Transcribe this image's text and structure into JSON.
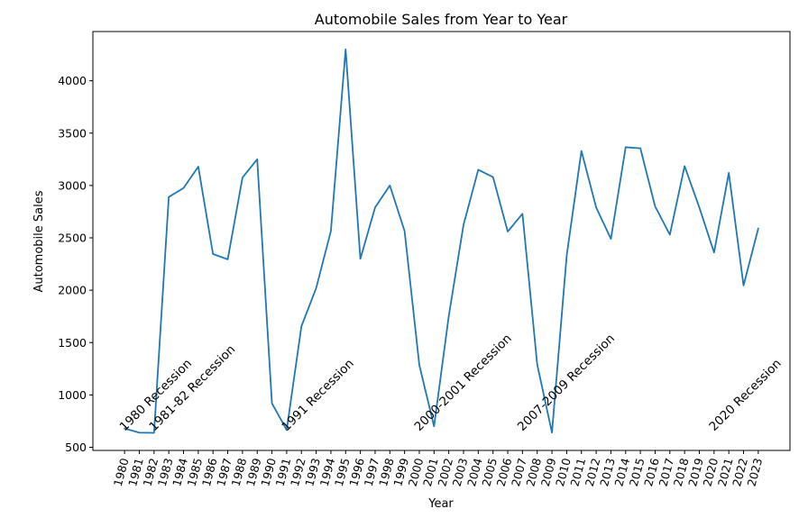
{
  "chart_data": {
    "type": "line",
    "title": "Automobile Sales from Year to Year",
    "xlabel": "Year",
    "ylabel": "Automobile Sales",
    "x": [
      1980,
      1981,
      1982,
      1983,
      1984,
      1985,
      1986,
      1987,
      1988,
      1989,
      1990,
      1991,
      1992,
      1993,
      1994,
      1995,
      1996,
      1997,
      1998,
      1999,
      2000,
      2001,
      2002,
      2003,
      2004,
      2005,
      2006,
      2007,
      2008,
      2009,
      2010,
      2011,
      2012,
      2013,
      2014,
      2015,
      2016,
      2017,
      2018,
      2019,
      2020,
      2021,
      2022,
      2023
    ],
    "series": [
      {
        "values": [
          680,
          640,
          638,
          2890,
          2975,
          3180,
          2345,
          2295,
          3075,
          3250,
          920,
          665,
          1655,
          2020,
          2565,
          4300,
          2300,
          2790,
          3000,
          2565,
          1285,
          700,
          1755,
          2625,
          3150,
          3080,
          2560,
          2730,
          1290,
          640,
          2330,
          3330,
          2790,
          2490,
          3365,
          3355,
          2800,
          2530,
          3185,
          2790,
          2360,
          3120,
          2045,
          2590
        ]
      }
    ],
    "color": "#1f77b4",
    "xlim": [
      1977.85,
      2025.15
    ],
    "ylim": [
      470,
      4470
    ],
    "yticks": [
      500,
      1000,
      1500,
      2000,
      2500,
      3000,
      3500,
      4000
    ],
    "grid": false,
    "annotations": [
      {
        "text": "1980 Recession",
        "x": 1980,
        "y": 650
      },
      {
        "text": "1981-82 Recession",
        "x": 1982,
        "y": 650
      },
      {
        "text": "1991 Recession",
        "x": 1991,
        "y": 650
      },
      {
        "text": "2000-2001 Recession",
        "x": 2000,
        "y": 650
      },
      {
        "text": "2007-2009 Recession",
        "x": 2007,
        "y": 650
      },
      {
        "text": "2020 Recession",
        "x": 2020,
        "y": 650
      }
    ]
  }
}
